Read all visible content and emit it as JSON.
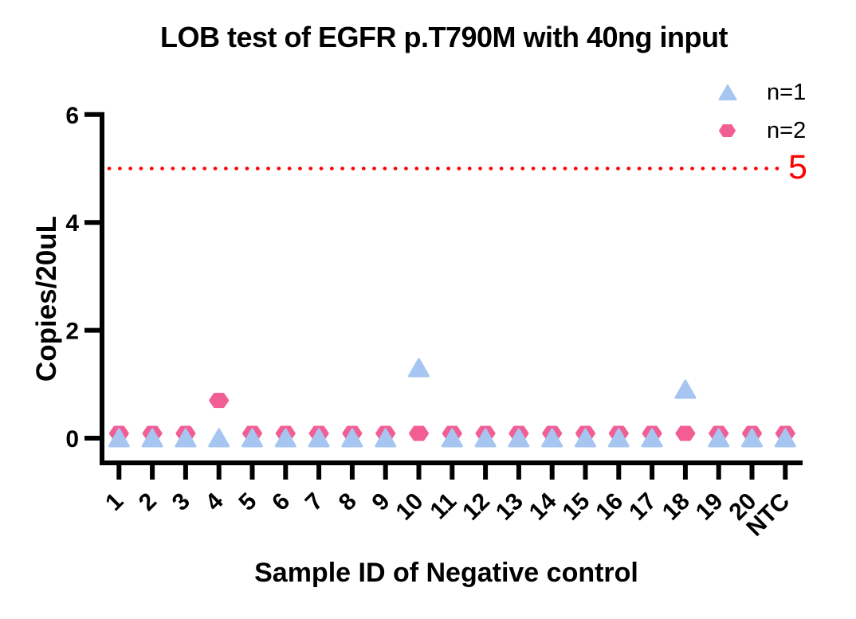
{
  "chart_data": {
    "type": "scatter",
    "title": "LOB test of EGFR p.T790M with 40ng input",
    "xlabel": "Sample ID of Negative control",
    "ylabel": "Copies/20uL",
    "categories": [
      "1",
      "2",
      "3",
      "4",
      "5",
      "6",
      "7",
      "8",
      "9",
      "10",
      "11",
      "12",
      "13",
      "14",
      "15",
      "16",
      "17",
      "18",
      "19",
      "20",
      "NTC"
    ],
    "series": [
      {
        "name": "n=1",
        "marker": "triangle",
        "color": "#A7C5F1",
        "values": [
          0,
          0,
          0,
          0,
          0,
          0,
          0,
          0,
          0,
          1.3,
          0,
          0,
          0,
          0,
          0,
          0,
          0,
          0.9,
          0,
          0,
          0
        ]
      },
      {
        "name": "n=2",
        "marker": "hexagon",
        "color": "#F25E94",
        "values": [
          0,
          0,
          0,
          0.7,
          0,
          0,
          0,
          0,
          0,
          0,
          0,
          0,
          0,
          0,
          0,
          0,
          0,
          0,
          0,
          0,
          0
        ]
      }
    ],
    "threshold_line": {
      "value": 5,
      "label": "5",
      "color": "#FF0000",
      "style": "dotted"
    },
    "y_axis": {
      "ticks": [
        0,
        2,
        4,
        6
      ],
      "lim": [
        0,
        6
      ]
    },
    "x_tick_rotation": -45,
    "legend_position": "top-right",
    "grid": false,
    "axis_color": "#000000",
    "background": "#FFFFFF"
  }
}
